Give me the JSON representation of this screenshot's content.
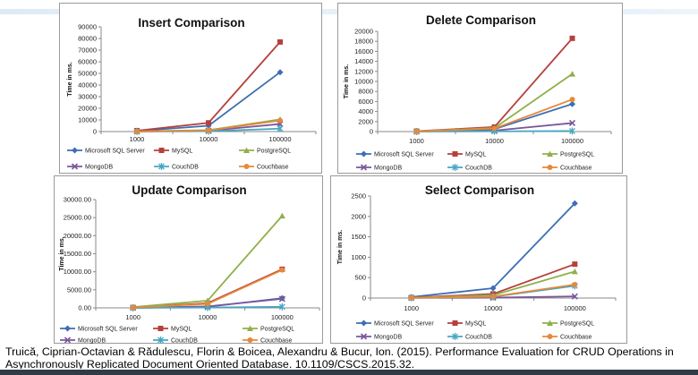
{
  "series_styles": [
    {
      "color": "#3d6eb4",
      "marker": "diamond"
    },
    {
      "color": "#b5403c",
      "marker": "square"
    },
    {
      "color": "#8fb04a",
      "marker": "triangle"
    },
    {
      "color": "#7a579b",
      "marker": "x"
    },
    {
      "color": "#46a6c2",
      "marker": "star"
    },
    {
      "color": "#e6893a",
      "marker": "circle"
    }
  ],
  "chart_data": [
    {
      "type": "line",
      "title": "Insert Comparison",
      "ylabel": "Time in ms.",
      "categories": [
        "1000",
        "10000",
        "100000"
      ],
      "yticks": [
        "0",
        "10000",
        "20000",
        "30000",
        "40000",
        "50000",
        "60000",
        "70000",
        "80000",
        "90000"
      ],
      "ylim": [
        0,
        90000
      ],
      "series": [
        {
          "name": "Microsoft SQL Server",
          "values": [
            500,
            5000,
            51000
          ]
        },
        {
          "name": "MySQL",
          "values": [
            800,
            7500,
            77000
          ]
        },
        {
          "name": "PostgreSQL",
          "values": [
            200,
            1200,
            10500
          ]
        },
        {
          "name": "MongoDB",
          "values": [
            100,
            700,
            6500
          ]
        },
        {
          "name": "CouchDB",
          "values": [
            50,
            300,
            2500
          ]
        },
        {
          "name": "Couchbase",
          "values": [
            150,
            1000,
            9500
          ]
        }
      ]
    },
    {
      "type": "line",
      "title": "Delete Comparison",
      "ylabel": "Time in ms.",
      "categories": [
        "1000",
        "10000",
        "100000"
      ],
      "yticks": [
        "0",
        "2000",
        "4000",
        "6000",
        "8000",
        "10000",
        "12000",
        "14000",
        "16000",
        "18000",
        "20000"
      ],
      "ylim": [
        0,
        20000
      ],
      "series": [
        {
          "name": "Microsoft SQL Server",
          "values": [
            50,
            500,
            5500
          ]
        },
        {
          "name": "MySQL",
          "values": [
            80,
            900,
            18600
          ]
        },
        {
          "name": "PostgreSQL",
          "values": [
            60,
            700,
            11500
          ]
        },
        {
          "name": "MongoDB",
          "values": [
            20,
            200,
            1700
          ]
        },
        {
          "name": "CouchDB",
          "values": [
            10,
            50,
            100
          ]
        },
        {
          "name": "Couchbase",
          "values": [
            40,
            600,
            6400
          ]
        }
      ]
    },
    {
      "type": "line",
      "title": "Update Comparison",
      "ylabel": "Time in ms.",
      "categories": [
        "1000",
        "10000",
        "100000"
      ],
      "yticks": [
        "0.00",
        "5000.00",
        "10000.00",
        "15000.00",
        "20000.00",
        "25000.00",
        "30000.00"
      ],
      "ylim": [
        0,
        30000
      ],
      "series": [
        {
          "name": "Microsoft SQL Server",
          "values": [
            20,
            300,
            2700
          ]
        },
        {
          "name": "MySQL",
          "values": [
            100,
            1300,
            10700
          ]
        },
        {
          "name": "PostgreSQL",
          "values": [
            200,
            2000,
            25500
          ]
        },
        {
          "name": "MongoDB",
          "values": [
            30,
            400,
            2500
          ]
        },
        {
          "name": "CouchDB",
          "values": [
            10,
            100,
            300
          ]
        },
        {
          "name": "Couchbase",
          "values": [
            90,
            1100,
            10500
          ]
        }
      ]
    },
    {
      "type": "line",
      "title": "Select Comparison",
      "ylabel": "Time in ms.",
      "categories": [
        "1000",
        "10000",
        "100000"
      ],
      "yticks": [
        "0",
        "500",
        "1000",
        "1500",
        "2000",
        "2500"
      ],
      "ylim": [
        0,
        2500
      ],
      "series": [
        {
          "name": "Microsoft SQL Server",
          "values": [
            25,
            240,
            2320
          ]
        },
        {
          "name": "MySQL",
          "values": [
            10,
            100,
            830
          ]
        },
        {
          "name": "PostgreSQL",
          "values": [
            8,
            70,
            650
          ]
        },
        {
          "name": "MongoDB",
          "values": [
            3,
            10,
            40
          ]
        },
        {
          "name": "CouchDB",
          "values": [
            5,
            30,
            300
          ]
        },
        {
          "name": "Couchbase",
          "values": [
            4,
            35,
            330
          ]
        }
      ]
    }
  ],
  "caption": {
    "line1": "Truică, Ciprian-Octavian & Rădulescu, Florin & Boicea, Alexandru & Bucur, Ion. (2015). Performance Evaluation for CRUD Operations in",
    "line2": "Asynchronously Replicated Document Oriented Database. 10.1109/CSCS.2015.32."
  }
}
